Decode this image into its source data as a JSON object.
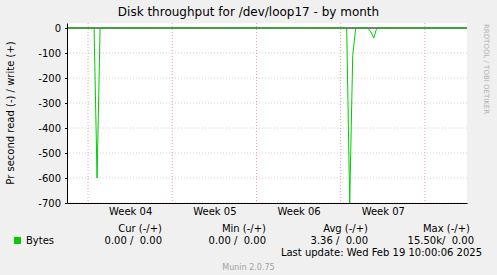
{
  "chart_data": {
    "type": "line",
    "title": "Disk throughput for /dev/loop17 - by month",
    "y_label": "Pr second read (-) / write (+)",
    "categories": [
      null,
      null,
      null,
      null,
      null,
      null,
      null,
      null,
      null,
      null,
      null,
      null,
      null,
      null,
      null,
      null,
      null,
      null,
      null,
      null,
      null,
      "Week 04",
      null,
      null,
      null,
      null,
      null,
      null,
      null,
      null,
      null,
      null,
      null,
      null,
      null,
      null,
      null,
      null,
      null,
      null,
      null,
      null,
      null,
      null,
      null,
      null,
      null,
      null,
      null,
      "Week 05",
      null,
      null,
      null,
      null,
      null,
      null,
      null,
      null,
      null,
      null,
      null,
      null,
      null,
      null,
      null,
      null,
      null,
      null,
      null,
      null,
      null,
      null,
      null,
      null,
      null,
      null,
      null,
      "Week 06",
      null,
      null,
      null,
      null,
      null,
      null,
      null,
      null,
      null,
      null,
      null,
      null,
      null,
      null,
      null,
      null,
      null,
      null,
      null,
      null,
      null,
      null,
      null,
      null,
      null,
      null,
      null,
      "Week 07",
      null,
      null,
      null,
      null,
      null,
      null,
      null,
      null,
      null,
      null,
      null,
      null,
      null,
      null,
      null,
      null,
      null,
      null,
      null,
      null,
      null,
      null,
      null,
      null,
      null,
      null,
      null,
      null
    ],
    "series": [
      {
        "name": "Bytes",
        "color": "#00cc00",
        "values": [
          0,
          0,
          0,
          0,
          0,
          0,
          0,
          0,
          0,
          0,
          -600,
          0,
          0,
          0,
          0,
          0,
          0,
          0,
          0,
          0,
          0,
          0,
          0,
          0,
          0,
          0,
          0,
          0,
          0,
          0,
          0,
          0,
          0,
          0,
          0,
          0,
          0,
          0,
          0,
          0,
          0,
          0,
          0,
          0,
          0,
          0,
          0,
          0,
          0,
          0,
          0,
          0,
          0,
          0,
          0,
          0,
          0,
          0,
          0,
          0,
          0,
          0,
          0,
          0,
          0,
          0,
          0,
          0,
          0,
          0,
          0,
          0,
          0,
          0,
          0,
          0,
          0,
          0,
          0,
          0,
          0,
          0,
          0,
          0,
          0,
          0,
          0,
          0,
          0,
          0,
          0,
          0,
          0,
          0,
          -700,
          -110,
          0,
          0,
          0,
          0,
          0,
          -15,
          -40,
          0,
          0,
          0,
          0,
          0,
          0,
          0,
          0,
          0,
          0,
          0,
          0,
          0,
          0,
          0,
          0,
          0,
          0,
          0,
          0,
          0,
          0,
          0,
          0,
          0,
          0,
          0,
          0,
          0,
          0,
          0
        ]
      }
    ],
    "ylim": [
      -700,
      20
    ],
    "yticks": [
      0,
      -100,
      -200,
      -300,
      -400,
      -500,
      -600,
      -700
    ],
    "grid": true,
    "stats": {
      "columns": [
        "Cur (-/+)",
        "Min (-/+)",
        "Avg (-/+)",
        "Max (-/+)"
      ],
      "values": [
        "0.00 /  0.00",
        "0.00 /  0.00",
        "3.36 /  0.00",
        "15.50k/  0.00"
      ]
    },
    "annotations": [
      "Last update: Wed Feb 19 10:00:06 2025",
      "Munin 2.0.75",
      "RRDTOOL / TOBI OETIKER"
    ]
  }
}
